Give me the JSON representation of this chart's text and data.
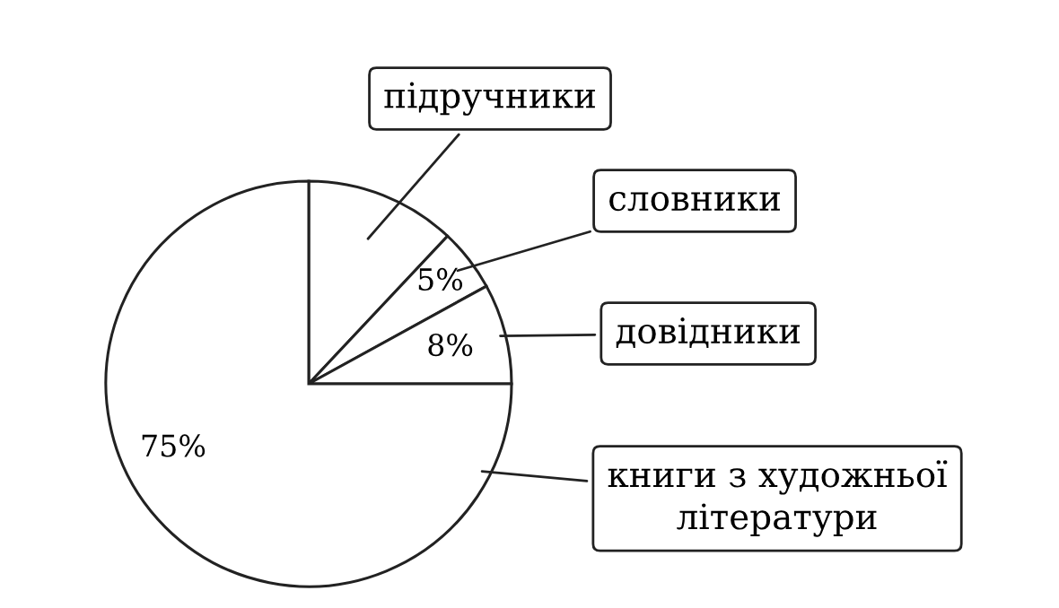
{
  "chart_data": {
    "type": "pie",
    "categories": [
      "підручники",
      "словники",
      "довідники",
      "книги з художньої\nлітератури"
    ],
    "values": [
      12,
      5,
      8,
      75
    ],
    "colors": [
      "#ffffff",
      "#ffffff",
      "#ffffff",
      "#ffffff"
    ],
    "value_labels": [
      null,
      "5%",
      "8%",
      "75%"
    ]
  }
}
